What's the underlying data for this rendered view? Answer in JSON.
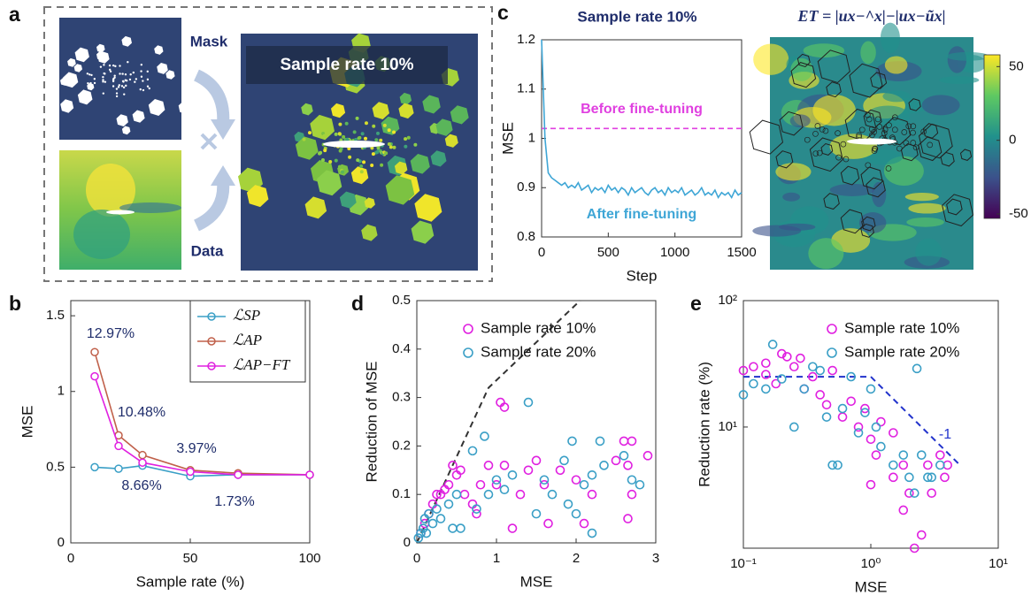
{
  "panel_labels": [
    "a",
    "b",
    "c",
    "d",
    "e"
  ],
  "panel_a": {
    "mask_label": "Mask",
    "data_label": "Data",
    "overlay_title": "Sample rate 10%"
  },
  "chart_data": [
    {
      "type": "line",
      "title": "Sample rate 10%",
      "xlabel": "Step",
      "ylabel": "MSE",
      "x": [
        0,
        25,
        50,
        75,
        100,
        125,
        150,
        175,
        200,
        225,
        250,
        275,
        300,
        325,
        350,
        375,
        400,
        425,
        450,
        475,
        500,
        525,
        550,
        575,
        600,
        625,
        650,
        675,
        700,
        725,
        750,
        775,
        800,
        825,
        850,
        875,
        900,
        925,
        950,
        975,
        1000,
        1025,
        1050,
        1075,
        1100,
        1125,
        1150,
        1175,
        1200,
        1225,
        1250,
        1275,
        1300,
        1325,
        1350,
        1375,
        1400,
        1425,
        1450,
        1475,
        1500
      ],
      "series": [
        {
          "color": "#3fa6d6",
          "values": [
            1.2,
            1.0,
            0.93,
            0.92,
            0.915,
            0.91,
            0.905,
            0.91,
            0.9,
            0.905,
            0.9,
            0.91,
            0.895,
            0.9,
            0.905,
            0.89,
            0.9,
            0.895,
            0.9,
            0.89,
            0.905,
            0.895,
            0.9,
            0.89,
            0.9,
            0.895,
            0.885,
            0.9,
            0.89,
            0.895,
            0.9,
            0.89,
            0.885,
            0.895,
            0.9,
            0.89,
            0.895,
            0.885,
            0.9,
            0.89,
            0.895,
            0.89,
            0.9,
            0.885,
            0.89,
            0.895,
            0.885,
            0.89,
            0.9,
            0.885,
            0.89,
            0.885,
            0.895,
            0.88,
            0.89,
            0.885,
            0.89,
            0.88,
            0.895,
            0.885,
            0.89
          ]
        }
      ],
      "hline": 1.02,
      "hline_color": "#e040e0",
      "annotations": [
        {
          "text": "Before fine-tuning",
          "color": "#e040e0"
        },
        {
          "text": "After fine-tuning",
          "color": "#3fa6d6"
        }
      ],
      "xlim": [
        0,
        1500
      ],
      "xticks": [
        0,
        500,
        1000,
        1500
      ],
      "ylim": [
        0.8,
        1.2
      ],
      "yticks": [
        0.8,
        0.9,
        1,
        1.1,
        1.2
      ]
    },
    {
      "type": "heatmap",
      "title": "ET = |ux−^x|−|ux−ũx|",
      "clim": [
        -53,
        58
      ],
      "cticks": [
        -50,
        0,
        50
      ]
    },
    {
      "type": "line",
      "xlabel": "Sample rate (%)",
      "ylabel": "MSE",
      "markers": true,
      "legend": "upper right",
      "x": [
        10,
        20,
        30,
        50,
        70,
        100
      ],
      "series": [
        {
          "name": "ℒSP",
          "color": "#3a9fc6",
          "values": [
            0.5,
            0.49,
            0.51,
            0.44,
            0.45,
            0.45
          ]
        },
        {
          "name": "ℒAP",
          "color": "#c0604a",
          "values": [
            1.26,
            0.71,
            0.58,
            0.48,
            0.46,
            0.45
          ]
        },
        {
          "name": "ℒAP−FT",
          "color": "#e020e0",
          "values": [
            1.1,
            0.64,
            0.53,
            0.47,
            0.45,
            0.45
          ]
        }
      ],
      "annotations": [
        {
          "text": "12.97%",
          "color": "#1f2d6b"
        },
        {
          "text": "10.48%",
          "color": "#1f2d6b"
        },
        {
          "text": "3.97%",
          "color": "#1f2d6b"
        },
        {
          "text": "8.66%",
          "color": "#1f2d6b"
        },
        {
          "text": "1.73%",
          "color": "#1f2d6b"
        }
      ],
      "xlim": [
        0,
        100
      ],
      "xticks": [
        0,
        50,
        100
      ],
      "ylim": [
        0,
        1.6
      ],
      "yticks": [
        0,
        0.5,
        1,
        1.5
      ]
    },
    {
      "type": "scatter",
      "xlabel": "MSE",
      "ylabel": "Reduction of MSE",
      "legend": "upper left",
      "series": [
        {
          "name": "Sample rate 10%",
          "color": "#e020e0",
          "x": [
            0.05,
            0.1,
            0.15,
            0.2,
            0.25,
            0.3,
            0.35,
            0.4,
            0.5,
            0.55,
            0.6,
            0.7,
            0.75,
            0.8,
            0.9,
            1.05,
            1.1,
            1.0,
            1.1,
            1.2,
            1.3,
            1.5,
            1.6,
            1.65,
            1.8,
            2.0,
            2.1,
            2.2,
            2.5,
            2.6,
            2.65,
            2.7,
            2.65,
            2.9,
            2.7,
            1.4,
            0.45
          ],
          "values": [
            0.02,
            0.04,
            0.06,
            0.08,
            0.1,
            0.1,
            0.11,
            0.12,
            0.14,
            0.15,
            0.1,
            0.08,
            0.06,
            0.12,
            0.16,
            0.29,
            0.28,
            0.12,
            0.16,
            0.03,
            0.1,
            0.17,
            0.12,
            0.04,
            0.15,
            0.13,
            0.04,
            0.1,
            0.17,
            0.21,
            0.05,
            0.21,
            0.16,
            0.18,
            0.1,
            0.15,
            0.16
          ]
        },
        {
          "name": "Sample rate 20%",
          "color": "#3a9fc6",
          "x": [
            0.02,
            0.05,
            0.08,
            0.1,
            0.12,
            0.15,
            0.2,
            0.25,
            0.3,
            0.4,
            0.45,
            0.5,
            0.55,
            0.7,
            0.75,
            0.85,
            0.9,
            1.0,
            1.1,
            1.2,
            1.4,
            1.5,
            1.6,
            1.7,
            1.9,
            1.95,
            2.0,
            2.1,
            2.2,
            2.3,
            2.35,
            2.6,
            2.7,
            2.8,
            2.2,
            1.85
          ],
          "values": [
            0.01,
            0.02,
            0.03,
            0.05,
            0.02,
            0.06,
            0.04,
            0.07,
            0.05,
            0.08,
            0.03,
            0.1,
            0.03,
            0.19,
            0.07,
            0.22,
            0.1,
            0.13,
            0.11,
            0.14,
            0.29,
            0.06,
            0.13,
            0.1,
            0.08,
            0.21,
            0.06,
            0.12,
            0.14,
            0.21,
            0.16,
            0.18,
            0.13,
            0.12,
            0.02,
            0.17
          ]
        }
      ],
      "reference_line": {
        "x": [
          0,
          0.9,
          2.05
        ],
        "y": [
          0,
          0.32,
          0.5
        ]
      },
      "xlim": [
        0,
        3
      ],
      "xticks": [
        0,
        1,
        2,
        3
      ],
      "ylim": [
        0,
        0.5
      ],
      "yticks": [
        0,
        0.1,
        0.2,
        0.3,
        0.4,
        0.5
      ]
    },
    {
      "type": "scatter",
      "xlabel": "MSE",
      "ylabel": "Reduction rate  (%)",
      "legend": "upper right",
      "xlog": true,
      "ylog": true,
      "series": [
        {
          "name": "Sample rate 10%",
          "color": "#e020e0",
          "x": [
            0.1,
            0.12,
            0.15,
            0.18,
            0.2,
            0.22,
            0.25,
            0.3,
            0.35,
            0.4,
            0.45,
            0.5,
            0.6,
            0.7,
            0.8,
            0.9,
            1.0,
            1.1,
            1.2,
            1.5,
            1.5,
            1.8,
            2.0,
            2.2,
            2.5,
            2.8,
            3.0,
            3.5,
            3.8,
            4.0,
            1.0,
            1.8,
            0.28,
            0.15
          ],
          "values": [
            28,
            30,
            26,
            22,
            38,
            36,
            30,
            20,
            25,
            18,
            15,
            28,
            12,
            16,
            10,
            14,
            8,
            6,
            11,
            4,
            9,
            5,
            3,
            1.1,
            1.4,
            5,
            3,
            6,
            4,
            5,
            3.5,
            2.2,
            35,
            32
          ]
        },
        {
          "name": "Sample rate 20%",
          "color": "#3a9fc6",
          "x": [
            0.1,
            0.12,
            0.15,
            0.17,
            0.2,
            0.25,
            0.3,
            0.35,
            0.4,
            0.5,
            0.55,
            0.6,
            0.7,
            0.8,
            0.9,
            1.0,
            1.2,
            1.5,
            1.8,
            2.0,
            2.2,
            2.3,
            2.5,
            2.8,
            3.0,
            3.5,
            1.1,
            0.45
          ],
          "values": [
            18,
            22,
            20,
            45,
            24,
            10,
            20,
            30,
            28,
            5,
            5,
            14,
            25,
            9,
            13,
            20,
            7,
            5,
            6,
            4,
            3,
            29,
            6,
            4,
            4,
            5,
            10,
            12
          ]
        }
      ],
      "reference_line": {
        "x": [
          0.1,
          1,
          5
        ],
        "y": [
          25,
          25,
          5
        ]
      },
      "reference_color": "#2233cc",
      "annotations": [
        {
          "text": "-1",
          "color": "#2233cc"
        }
      ],
      "xlim": [
        0.1,
        10
      ],
      "xticks": [
        {
          "value": 0.1,
          "label": "10⁻¹"
        },
        {
          "value": 1,
          "label": "10⁰"
        },
        {
          "value": 10,
          "label": "10¹"
        }
      ],
      "ylim": [
        1.1,
        100
      ],
      "yticks": [
        {
          "value": 10,
          "label": "10¹"
        },
        {
          "value": 100,
          "label": "10²"
        }
      ]
    }
  ]
}
